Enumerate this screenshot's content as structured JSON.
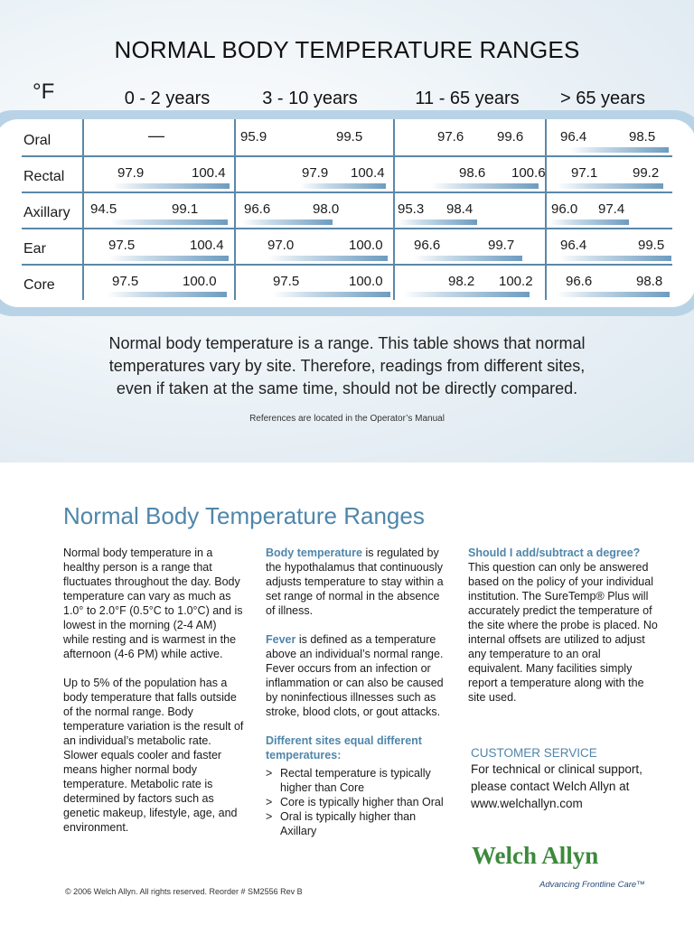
{
  "header": {
    "title": "NORMAL BODY TEMPERATURE RANGES",
    "unit": "°F",
    "age_groups": [
      "0  -  2 years",
      "3  -  10 years",
      "11  -  65 years",
      "> 65 years"
    ]
  },
  "table": {
    "rows": [
      {
        "label": "Oral",
        "cells": [
          {
            "low": "",
            "high": "",
            "empty_mark": "—"
          },
          {
            "low": "95.9",
            "high": "99.5"
          },
          {
            "low": "97.6",
            "high": "99.6"
          },
          {
            "low": "96.4",
            "high": "98.5"
          }
        ]
      },
      {
        "label": "Rectal",
        "cells": [
          {
            "low": "97.9",
            "high": "100.4"
          },
          {
            "low": "97.9",
            "high": "100.4"
          },
          {
            "low": "98.6",
            "high": "100.6"
          },
          {
            "low": "97.1",
            "high": "99.2"
          }
        ]
      },
      {
        "label": "Axillary",
        "cells": [
          {
            "low": "94.5",
            "high": "99.1"
          },
          {
            "low": "96.6",
            "high": "98.0"
          },
          {
            "low": "95.3",
            "high": "98.4"
          },
          {
            "low": "96.0",
            "high": "97.4"
          }
        ]
      },
      {
        "label": "Ear",
        "cells": [
          {
            "low": "97.5",
            "high": "100.4"
          },
          {
            "low": "97.0",
            "high": "100.0"
          },
          {
            "low": "96.6",
            "high": "99.7"
          },
          {
            "low": "96.4",
            "high": "99.5"
          }
        ]
      },
      {
        "label": "Core",
        "cells": [
          {
            "low": "97.5",
            "high": "100.0"
          },
          {
            "low": "97.5",
            "high": "100.0"
          },
          {
            "low": "98.2",
            "high": "100.2"
          },
          {
            "low": "96.6",
            "high": "98.8"
          }
        ]
      }
    ]
  },
  "note": {
    "line1": "Normal body temperature is a range. This table shows that normal",
    "line2": "temperatures vary by site. Therefore, readings from different sites,",
    "line3": "even if taken at the same time, should not be directly compared.",
    "refs": "References are located in the Operator’s Manual"
  },
  "info": {
    "title": "Normal Body Temperature Ranges",
    "col1_p1": "Normal body temperature in a healthy person is a range that fluctuates throughout the day. Body temperature can vary as much as 1.0° to 2.0°F (0.5°C to 1.0°C) and is lowest in the morning (2-4 AM) while resting and is warmest in the afternoon (4-6 PM) while active.",
    "col1_p2": "Up to 5% of the population has a body temperature that falls outside of the normal range. Body temperature variation is the result of an individual’s metabolic rate. Slower equals cooler and faster means higher normal body temperature. Metabolic rate is determined by factors such as genetic makeup, lifestyle, age, and environment.",
    "col2_h1": "Body temperature",
    "col2_p1": " is regulated by the hypothalamus that continuously adjusts temperature to stay within a set range of normal in the absence of illness.",
    "col2_h2": "Fever",
    "col2_p2": " is defined as a temperature above an individual’s normal range. Fever occurs from an infection or inflammation or can also be caused by noninfectious illnesses such as stroke, blood clots, or gout attacks.",
    "col2_h3": "Different sites equal different temperatures:",
    "bullet_mark": ">",
    "col2_bullets": [
      "Rectal temperature is typically higher than Core",
      "Core is typically higher than Oral",
      "Oral is typically higher than Axillary"
    ],
    "col3_h": "Should I add/subtract a degree?",
    "col3_p": "This question can only be answered based on the policy of your individual institution. The SureTemp® Plus will accurately predict the temperature of the site where the probe is placed. No internal offsets are utilized to adjust any temperature to an oral equivalent. Many facilities simply report a temperature along with the site used.",
    "cs_heading": "CUSTOMER SERVICE",
    "cs_line1": "For technical or clinical support,",
    "cs_line2": "please contact Welch Allyn at",
    "cs_line3": "www.welchallyn.com"
  },
  "footer": {
    "logo": "Welch Allyn",
    "tagline": "Advancing Frontline Care™",
    "copyright": "© 2006 Welch Allyn. All rights reserved. Reorder # SM2556 Rev B"
  }
}
